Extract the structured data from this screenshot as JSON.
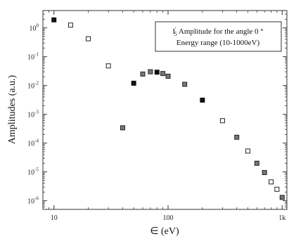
{
  "chart_data": {
    "type": "scatter",
    "xlabel": "∈ (eV)",
    "ylabel": "Amplitudes (a.u.)",
    "xscale": "log",
    "yscale": "log",
    "xlim": [
      8,
      1100
    ],
    "ylim": [
      5e-07,
      4
    ],
    "x_ticks": [
      {
        "value": 10,
        "label": "10"
      },
      {
        "value": 100,
        "label": "100"
      },
      {
        "value": 1000,
        "label": "1k"
      }
    ],
    "y_ticks": [
      {
        "value": 1,
        "base": "10",
        "exp": "0"
      },
      {
        "value": 0.1,
        "base": "10",
        "exp": "-1"
      },
      {
        "value": 0.01,
        "base": "10",
        "exp": "-2"
      },
      {
        "value": 0.001,
        "base": "10",
        "exp": "-3"
      },
      {
        "value": 0.0001,
        "base": "10",
        "exp": "-4"
      },
      {
        "value": 1e-05,
        "base": "10",
        "exp": "-5"
      },
      {
        "value": 1e-06,
        "base": "10",
        "exp": "-6"
      }
    ],
    "annotation": {
      "line1_symbol": "I",
      "line1_sub": "5",
      "line1_prime": "′",
      "line1_rest": " Amplitude for the angle 0 °",
      "line2": "Energy range (10-1000eV)",
      "position": "top-right"
    },
    "grid": false,
    "points": [
      {
        "x": 10,
        "y": 1.9,
        "style": "filled"
      },
      {
        "x": 14,
        "y": 1.25,
        "style": "open"
      },
      {
        "x": 20,
        "y": 0.42,
        "style": "open"
      },
      {
        "x": 30,
        "y": 0.048,
        "style": "open"
      },
      {
        "x": 40,
        "y": 0.00034,
        "style": "gray"
      },
      {
        "x": 50,
        "y": 0.012,
        "style": "filled"
      },
      {
        "x": 60,
        "y": 0.025,
        "style": "gray"
      },
      {
        "x": 70,
        "y": 0.03,
        "style": "gray"
      },
      {
        "x": 80,
        "y": 0.029,
        "style": "filled"
      },
      {
        "x": 90,
        "y": 0.026,
        "style": "gray"
      },
      {
        "x": 100,
        "y": 0.021,
        "style": "gray"
      },
      {
        "x": 140,
        "y": 0.011,
        "style": "gray"
      },
      {
        "x": 200,
        "y": 0.0031,
        "style": "filled"
      },
      {
        "x": 300,
        "y": 0.0006,
        "style": "open"
      },
      {
        "x": 400,
        "y": 0.00016,
        "style": "gray"
      },
      {
        "x": 500,
        "y": 5.3e-05,
        "style": "open"
      },
      {
        "x": 600,
        "y": 2e-05,
        "style": "gray"
      },
      {
        "x": 700,
        "y": 9.5e-06,
        "style": "gray"
      },
      {
        "x": 800,
        "y": 4.5e-06,
        "style": "open"
      },
      {
        "x": 900,
        "y": 2.5e-06,
        "style": "open"
      },
      {
        "x": 1000,
        "y": 1.3e-06,
        "style": "gray"
      }
    ]
  }
}
